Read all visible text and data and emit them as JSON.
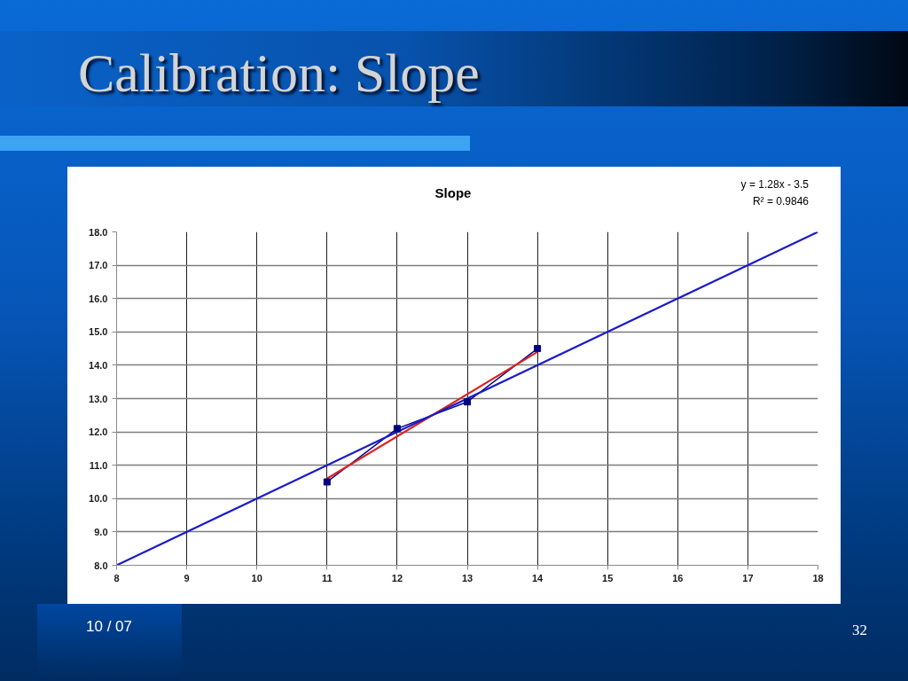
{
  "chart_data": {
    "type": "line",
    "title": "Calibration: Slope",
    "subtitle": "Slope",
    "annotations": [
      "y = 1.28x - 3.5",
      "R² = 0.9846",
      "10 / 07",
      "32"
    ],
    "xlim": [
      8,
      18
    ],
    "ylim": [
      8,
      18
    ],
    "xticks": [
      8,
      9,
      10,
      11,
      12,
      13,
      14,
      15,
      16,
      17,
      18
    ],
    "yticks": [
      {
        "value": 8,
        "label": "8.0"
      },
      {
        "value": 9,
        "label": "9.0"
      },
      {
        "value": 10,
        "label": "10.0"
      },
      {
        "value": 11,
        "label": "11.0"
      },
      {
        "value": 12,
        "label": "12.0"
      },
      {
        "value": 13,
        "label": "13.0"
      },
      {
        "value": 14,
        "label": "14.0"
      },
      {
        "value": 15,
        "label": "15.0"
      },
      {
        "value": 16,
        "label": "16.0"
      },
      {
        "value": 17,
        "label": "17.0"
      },
      {
        "value": 18,
        "label": "18.0"
      }
    ],
    "grid": true,
    "series": [
      {
        "color": "#000080",
        "marker": "square",
        "x": [
          11,
          12,
          13,
          14
        ],
        "values": [
          10.5,
          12.1,
          12.9,
          14.5
        ]
      },
      {
        "color": "#dd2020",
        "x": [
          11,
          14
        ],
        "values": [
          10.6,
          14.4
        ]
      },
      {
        "color": "#1c1cc8",
        "x": [
          8,
          18
        ],
        "values": [
          8,
          18
        ]
      }
    ]
  }
}
